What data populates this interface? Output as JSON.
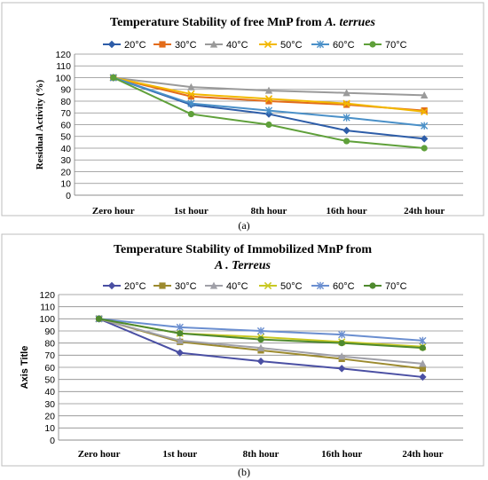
{
  "chart_data": [
    {
      "type": "line",
      "title_parts": [
        "Temperature Stability of free MnP from ",
        "A. terrues"
      ],
      "ylabel": "Residual Activity (%)",
      "xlabel": "",
      "categories": [
        "Zero hour",
        "1st hour",
        "8th hour",
        "16th hour",
        "24th hour"
      ],
      "ylim": [
        0,
        120
      ],
      "ytick_step": 10,
      "grid": true,
      "legend_placement": "top",
      "panel_label": "(a)",
      "series": [
        {
          "name": "20°C",
          "color": "#2E5DA8",
          "marker": "diamond",
          "values": [
            100,
            77,
            69,
            55,
            48
          ]
        },
        {
          "name": "30°C",
          "color": "#E36C1A",
          "marker": "square",
          "values": [
            100,
            84,
            80,
            77,
            72
          ]
        },
        {
          "name": "40°C",
          "color": "#9A9A9A",
          "marker": "triangle",
          "values": [
            100,
            92,
            89,
            87,
            85
          ]
        },
        {
          "name": "50°C",
          "color": "#F2B800",
          "marker": "x",
          "values": [
            100,
            86,
            82,
            78,
            71
          ]
        },
        {
          "name": "60°C",
          "color": "#4A90C8",
          "marker": "star",
          "values": [
            100,
            78,
            72,
            66,
            59
          ]
        },
        {
          "name": "70°C",
          "color": "#5FA03A",
          "marker": "circle",
          "values": [
            100,
            69,
            60,
            46,
            40
          ]
        }
      ]
    },
    {
      "type": "line",
      "title_lines": [
        "Temperature Stability of Immobilized MnP from",
        "A . Terreus"
      ],
      "ylabel": "Axis Title",
      "xlabel": "",
      "categories": [
        "Zero hour",
        "1st hour",
        "8th hour",
        "16th hour",
        "24th hour"
      ],
      "ylim": [
        0,
        120
      ],
      "ytick_step": 10,
      "grid": true,
      "legend_placement": "top",
      "panel_label": "(b)",
      "series": [
        {
          "name": "20°C",
          "color": "#4A4FA3",
          "marker": "diamond",
          "values": [
            100,
            72,
            65,
            59,
            52
          ]
        },
        {
          "name": "30°C",
          "color": "#9C8A2E",
          "marker": "square",
          "values": [
            100,
            81,
            74,
            67,
            59
          ]
        },
        {
          "name": "40°C",
          "color": "#A0A0A8",
          "marker": "triangle",
          "values": [
            100,
            82,
            76,
            69,
            63
          ]
        },
        {
          "name": "50°C",
          "color": "#C8C822",
          "marker": "x",
          "values": [
            100,
            88,
            85,
            81,
            77
          ]
        },
        {
          "name": "60°C",
          "color": "#6A8ED0",
          "marker": "star",
          "values": [
            100,
            93,
            90,
            87,
            82
          ]
        },
        {
          "name": "70°C",
          "color": "#4F8A2E",
          "marker": "circle",
          "values": [
            100,
            88,
            83,
            80,
            76
          ]
        }
      ]
    }
  ]
}
